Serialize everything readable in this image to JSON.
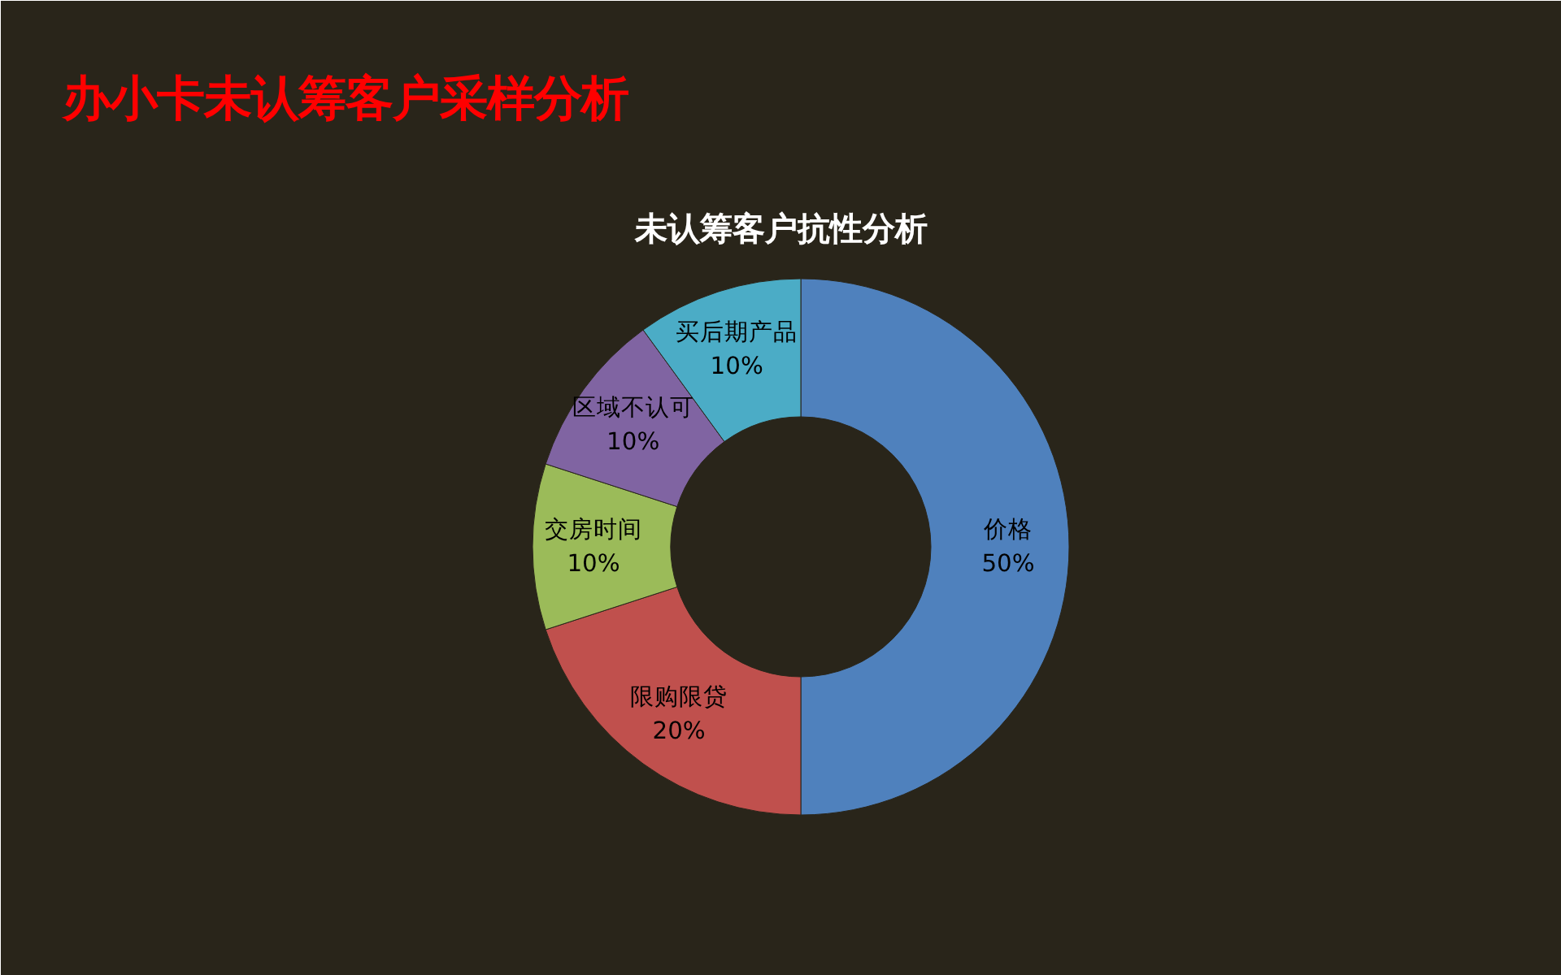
{
  "chart_data": {
    "type": "donut",
    "title": "办小卡未认筹客户采样分析",
    "subtitle": "未认筹客户抗性分析",
    "categories": [
      "价格",
      "限购限贷",
      "交房时间",
      "区域不认可",
      "买后期产品"
    ],
    "values": [
      50,
      20,
      10,
      10,
      10
    ],
    "colors": [
      "#4f81bd",
      "#c0504d",
      "#9bbb59",
      "#8064a2",
      "#4bacc6"
    ],
    "value_labels": [
      "50%",
      "20%",
      "10%",
      "10%",
      "10%"
    ],
    "legend": false
  }
}
